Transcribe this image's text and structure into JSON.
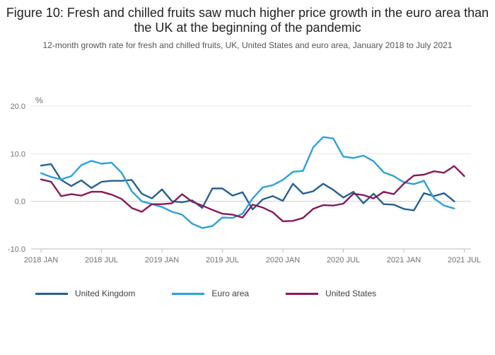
{
  "title": "Figure 10: Fresh and chilled fruits saw much higher price growth in the euro area than the UK at the beginning of the pandemic",
  "subtitle": "12-month growth rate for fresh and chilled fruits, UK, United States and euro area, January 2018 to July 2021",
  "chart_data": {
    "type": "line",
    "ylabel": "%",
    "ylim": [
      -10,
      20
    ],
    "yticks": [
      -10,
      0,
      10,
      20
    ],
    "ytick_labels": [
      "-10.0",
      "0.0",
      "10.0",
      "20.0"
    ],
    "xtick_labels": [
      "2018 JAN",
      "2018 JUL",
      "2019 JAN",
      "2019 JUL",
      "2020 JAN",
      "2020 JUL",
      "2021 JAN",
      "2021 JUL"
    ],
    "xtick_index": [
      0,
      6,
      12,
      18,
      24,
      30,
      36,
      42
    ],
    "x_start": "2018-01",
    "x_end": "2021-07",
    "grid": true,
    "legend_position": "bottom-left",
    "series": [
      {
        "name": "United Kingdom",
        "color": "#27608f",
        "values": [
          7.5,
          7.8,
          4.5,
          3.2,
          4.4,
          2.8,
          4.1,
          4.3,
          4.3,
          4.5,
          1.6,
          0.6,
          2.5,
          0.0,
          -0.2,
          0.2,
          -1.4,
          2.7,
          2.7,
          1.2,
          1.9,
          -1.7,
          0.4,
          1.1,
          0.1,
          3.7,
          1.6,
          2.1,
          3.7,
          2.4,
          0.8,
          2.0,
          -0.4,
          1.6,
          -0.6,
          -0.7,
          -1.6,
          -1.9,
          1.7,
          1.1,
          1.7,
          0.0
        ]
      },
      {
        "name": "Euro area",
        "color": "#2ea1d4",
        "values": [
          5.9,
          5.1,
          4.6,
          5.3,
          7.6,
          8.5,
          7.9,
          8.1,
          6.0,
          2.1,
          0.0,
          -0.6,
          -1.2,
          -2.2,
          -2.8,
          -4.7,
          -5.6,
          -5.2,
          -3.4,
          -3.5,
          -2.6,
          0.6,
          2.9,
          3.4,
          4.5,
          6.2,
          6.4,
          11.3,
          13.5,
          13.2,
          9.4,
          9.1,
          9.6,
          8.4,
          6.1,
          5.3,
          4.0,
          3.6,
          4.3,
          0.6,
          -0.9,
          -1.5
        ]
      },
      {
        "name": "United States",
        "color": "#871a5b",
        "values": [
          4.6,
          4.1,
          1.1,
          1.5,
          1.2,
          2.0,
          2.0,
          1.4,
          0.5,
          -1.4,
          -2.2,
          -0.6,
          -0.6,
          -0.4,
          1.5,
          -0.1,
          -0.9,
          -1.8,
          -2.6,
          -2.8,
          -3.4,
          -0.7,
          -1.3,
          -2.3,
          -4.2,
          -4.1,
          -3.5,
          -1.6,
          -0.8,
          -0.9,
          -0.5,
          1.6,
          1.3,
          0.6,
          2.0,
          1.5,
          3.7,
          5.4,
          5.6,
          6.3,
          6.0,
          7.4,
          5.3
        ]
      }
    ]
  }
}
